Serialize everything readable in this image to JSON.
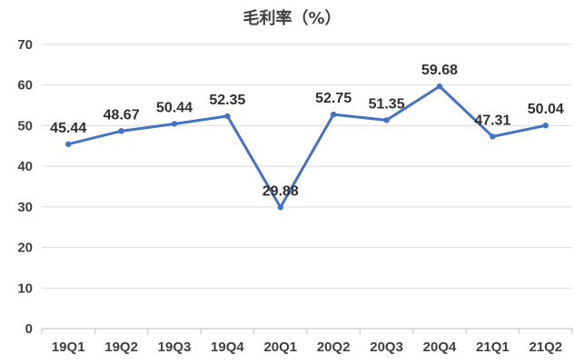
{
  "chart_data": {
    "type": "line",
    "title": "毛利率（%）",
    "xlabel": "",
    "ylabel": "",
    "categories": [
      "19Q1",
      "19Q2",
      "19Q3",
      "19Q4",
      "20Q1",
      "20Q2",
      "20Q3",
      "20Q4",
      "21Q1",
      "21Q2"
    ],
    "series": [
      {
        "values": [
          45.44,
          48.67,
          50.44,
          52.35,
          29.88,
          52.75,
          51.35,
          59.68,
          47.31,
          50.04
        ],
        "labels": [
          "45.44",
          "48.67",
          "50.44",
          "52.35",
          "29.88",
          "52.75",
          "51.35",
          "59.68",
          "47.31",
          "50.04"
        ],
        "color": "#4472C4"
      }
    ],
    "ylim": [
      0,
      70
    ],
    "yticks": [
      "0",
      "10",
      "20",
      "30",
      "40",
      "50",
      "60",
      "70"
    ],
    "grid": true,
    "legend": "none"
  }
}
